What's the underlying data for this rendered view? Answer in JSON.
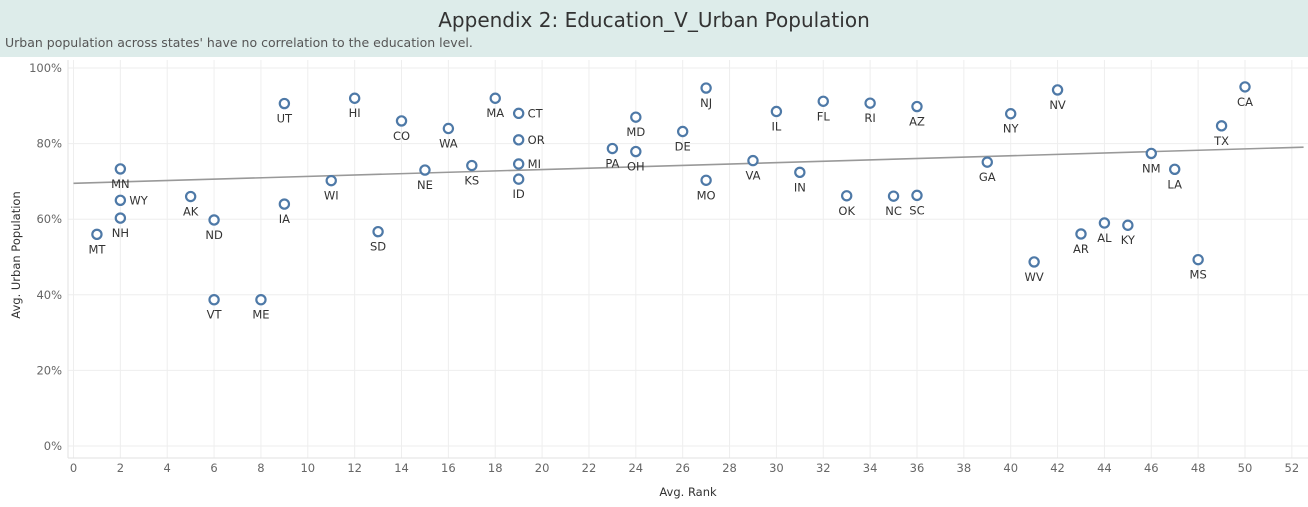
{
  "title": "Appendix 2: Education_V_Urban Population",
  "subtitle": "Urban population across states' have no correlation to the education level.",
  "chart_data": {
    "type": "scatter",
    "xlabel": "Avg. Rank",
    "ylabel": "Avg. Urban Population",
    "xlim": [
      0,
      52.5
    ],
    "ylim": [
      -0.02,
      1.02
    ],
    "x_ticks": [
      0,
      2,
      4,
      6,
      8,
      10,
      12,
      14,
      16,
      18,
      20,
      22,
      24,
      26,
      28,
      30,
      32,
      34,
      36,
      38,
      40,
      42,
      44,
      46,
      48,
      50,
      52
    ],
    "y_ticks": [
      0,
      0.2,
      0.4,
      0.6,
      0.8,
      1.0
    ],
    "y_tick_labels": [
      "0%",
      "20%",
      "40%",
      "60%",
      "80%",
      "100%"
    ],
    "grid": true,
    "marker_color": "#4e79a7",
    "trend_line": {
      "color": "#999999",
      "intercept": 0.695,
      "slope": 0.00182
    },
    "points": [
      {
        "label": "MT",
        "x": 1,
        "y": 0.56,
        "label_pos": "below"
      },
      {
        "label": "MN",
        "x": 2,
        "y": 0.733,
        "label_pos": "below"
      },
      {
        "label": "WY",
        "x": 2,
        "y": 0.65,
        "label_pos": "right"
      },
      {
        "label": "NH",
        "x": 2,
        "y": 0.603,
        "label_pos": "below"
      },
      {
        "label": "AK",
        "x": 5,
        "y": 0.66,
        "label_pos": "below"
      },
      {
        "label": "ND",
        "x": 6,
        "y": 0.598,
        "label_pos": "below"
      },
      {
        "label": "VT",
        "x": 6,
        "y": 0.387,
        "label_pos": "below"
      },
      {
        "label": "ME",
        "x": 8,
        "y": 0.387,
        "label_pos": "below"
      },
      {
        "label": "UT",
        "x": 9,
        "y": 0.906,
        "label_pos": "below"
      },
      {
        "label": "IA",
        "x": 9,
        "y": 0.64,
        "label_pos": "below"
      },
      {
        "label": "WI",
        "x": 11,
        "y": 0.702,
        "label_pos": "below"
      },
      {
        "label": "HI",
        "x": 12,
        "y": 0.92,
        "label_pos": "below"
      },
      {
        "label": "SD",
        "x": 13,
        "y": 0.567,
        "label_pos": "below"
      },
      {
        "label": "CO",
        "x": 14,
        "y": 0.86,
        "label_pos": "below"
      },
      {
        "label": "NE",
        "x": 15,
        "y": 0.73,
        "label_pos": "below"
      },
      {
        "label": "WA",
        "x": 16,
        "y": 0.84,
        "label_pos": "below"
      },
      {
        "label": "KS",
        "x": 17,
        "y": 0.742,
        "label_pos": "below"
      },
      {
        "label": "MA",
        "x": 18,
        "y": 0.92,
        "label_pos": "below"
      },
      {
        "label": "CT",
        "x": 19,
        "y": 0.88,
        "label_pos": "right"
      },
      {
        "label": "OR",
        "x": 19,
        "y": 0.81,
        "label_pos": "right"
      },
      {
        "label": "MI",
        "x": 19,
        "y": 0.746,
        "label_pos": "right"
      },
      {
        "label": "ID",
        "x": 19,
        "y": 0.706,
        "label_pos": "below"
      },
      {
        "label": "PA",
        "x": 23,
        "y": 0.787,
        "label_pos": "below"
      },
      {
        "label": "MD",
        "x": 24,
        "y": 0.87,
        "label_pos": "below"
      },
      {
        "label": "OH",
        "x": 24,
        "y": 0.779,
        "label_pos": "below"
      },
      {
        "label": "DE",
        "x": 26,
        "y": 0.832,
        "label_pos": "below"
      },
      {
        "label": "NJ",
        "x": 27,
        "y": 0.947,
        "label_pos": "below"
      },
      {
        "label": "MO",
        "x": 27,
        "y": 0.703,
        "label_pos": "below"
      },
      {
        "label": "VA",
        "x": 29,
        "y": 0.755,
        "label_pos": "below"
      },
      {
        "label": "IL",
        "x": 30,
        "y": 0.885,
        "label_pos": "below"
      },
      {
        "label": "IN",
        "x": 31,
        "y": 0.724,
        "label_pos": "below"
      },
      {
        "label": "FL",
        "x": 32,
        "y": 0.912,
        "label_pos": "below"
      },
      {
        "label": "OK",
        "x": 33,
        "y": 0.662,
        "label_pos": "below"
      },
      {
        "label": "RI",
        "x": 34,
        "y": 0.907,
        "label_pos": "below"
      },
      {
        "label": "NC",
        "x": 35,
        "y": 0.661,
        "label_pos": "below"
      },
      {
        "label": "AZ",
        "x": 36,
        "y": 0.898,
        "label_pos": "below"
      },
      {
        "label": "SC",
        "x": 36,
        "y": 0.663,
        "label_pos": "below"
      },
      {
        "label": "GA",
        "x": 39,
        "y": 0.751,
        "label_pos": "below"
      },
      {
        "label": "NY",
        "x": 40,
        "y": 0.879,
        "label_pos": "below"
      },
      {
        "label": "WV",
        "x": 41,
        "y": 0.487,
        "label_pos": "below"
      },
      {
        "label": "NV",
        "x": 42,
        "y": 0.942,
        "label_pos": "below"
      },
      {
        "label": "AR",
        "x": 43,
        "y": 0.561,
        "label_pos": "below"
      },
      {
        "label": "AL",
        "x": 44,
        "y": 0.59,
        "label_pos": "below"
      },
      {
        "label": "KY",
        "x": 45,
        "y": 0.584,
        "label_pos": "below"
      },
      {
        "label": "NM",
        "x": 46,
        "y": 0.774,
        "label_pos": "below"
      },
      {
        "label": "LA",
        "x": 47,
        "y": 0.732,
        "label_pos": "below"
      },
      {
        "label": "MS",
        "x": 48,
        "y": 0.493,
        "label_pos": "below"
      },
      {
        "label": "TX",
        "x": 49,
        "y": 0.847,
        "label_pos": "below"
      },
      {
        "label": "CA",
        "x": 50,
        "y": 0.95,
        "label_pos": "below"
      }
    ]
  }
}
